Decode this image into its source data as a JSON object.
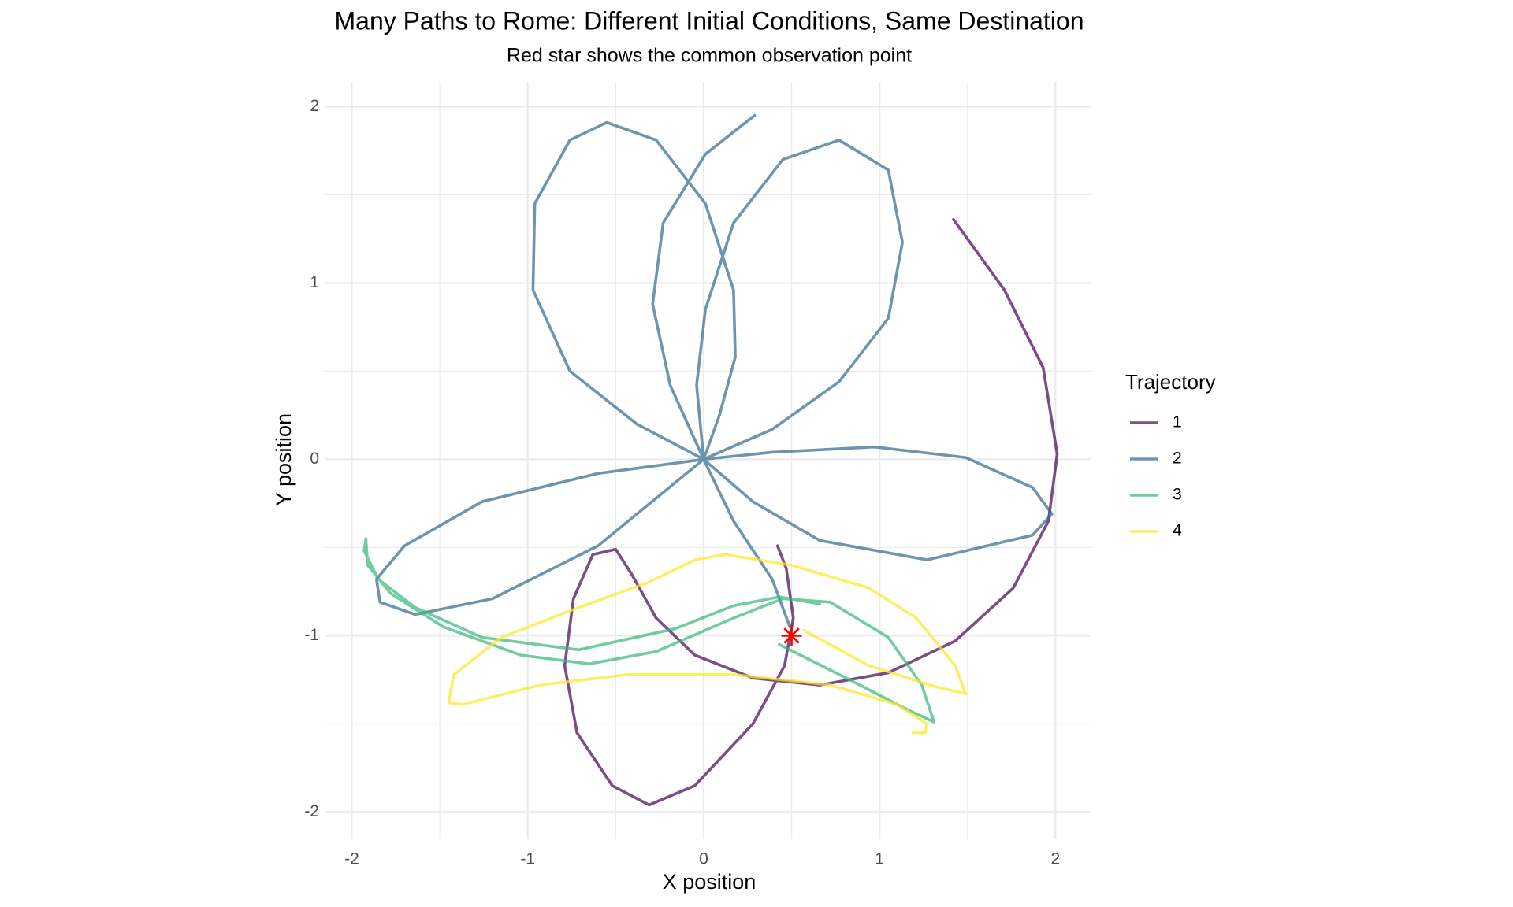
{
  "chart_data": {
    "type": "line",
    "title": "Many Paths to Rome: Different Initial Conditions, Same Destination",
    "subtitle": "Red star shows the common observation point",
    "x_label": "X position",
    "y_label": "Y position",
    "legend_title": "Trajectory",
    "legend_position": "right",
    "grid": true,
    "line_opacity": 0.7,
    "xlim": [
      -2.15,
      2.2
    ],
    "ylim": [
      -2.15,
      2.14
    ],
    "xticks": [
      -2,
      -1,
      0,
      1,
      2
    ],
    "yticks": [
      -2,
      -1,
      0,
      1,
      2
    ],
    "observation_point": {
      "x": 0.5,
      "y": -1,
      "color": "#ff0000"
    },
    "series": [
      {
        "name": "1",
        "color": "#440154",
        "x": [
          1.42,
          1.71,
          1.93,
          2.01,
          1.96,
          1.76,
          1.43,
          1.05,
          0.66,
          0.28,
          -0.05,
          -0.27,
          -0.41,
          -0.5,
          -0.63,
          -0.74,
          -0.79,
          -0.72,
          -0.52,
          -0.31,
          -0.05,
          0.28,
          0.46,
          0.51,
          0.47,
          0.42
        ],
        "values": [
          1.36,
          0.96,
          0.52,
          0.03,
          -0.35,
          -0.73,
          -1.03,
          -1.21,
          -1.28,
          -1.24,
          -1.11,
          -0.9,
          -0.65,
          -0.51,
          -0.54,
          -0.79,
          -1.17,
          -1.55,
          -1.85,
          -1.96,
          -1.85,
          -1.5,
          -1.17,
          -0.9,
          -0.62,
          -0.49
        ]
      },
      {
        "name": "2",
        "color": "#31688e",
        "x": [
          0.49,
          0.39,
          0.17,
          0,
          -0.6,
          -1.26,
          -1.7,
          -1.86,
          -1.84,
          -1.64,
          -1.2,
          -0.6,
          0,
          0.39,
          0.97,
          1.49,
          1.87,
          1.98,
          1.87,
          1.27,
          0.66,
          0.28,
          0,
          -0.04,
          0.01,
          0.17,
          0.45,
          0.77,
          1.05,
          1.13,
          1.05,
          0.77,
          0.39,
          0,
          0.09,
          0.18,
          0.17,
          0.01,
          -0.27,
          -0.55,
          -0.76,
          -0.96,
          -0.97,
          -0.76,
          -0.38,
          0,
          -0.19,
          -0.29,
          -0.23,
          0.01,
          0.29
        ],
        "values": [
          -0.95,
          -0.68,
          -0.35,
          0,
          -0.08,
          -0.24,
          -0.49,
          -0.68,
          -0.81,
          -0.88,
          -0.79,
          -0.49,
          0,
          0.04,
          0.07,
          0.01,
          -0.16,
          -0.31,
          -0.43,
          -0.57,
          -0.46,
          -0.24,
          0,
          0.42,
          0.85,
          1.34,
          1.7,
          1.81,
          1.64,
          1.23,
          0.8,
          0.44,
          0.17,
          0,
          0.25,
          0.58,
          0.96,
          1.45,
          1.81,
          1.91,
          1.81,
          1.45,
          0.96,
          0.5,
          0.2,
          0,
          0.42,
          0.88,
          1.34,
          1.73,
          1.95
        ]
      },
      {
        "name": "3",
        "color": "#35b779",
        "x": [
          0.66,
          0.43,
          0.17,
          -0.16,
          -0.71,
          -1.26,
          -1.64,
          -1.85,
          -1.93,
          -1.92,
          -1.91,
          -1.78,
          -1.48,
          -1.04,
          -0.65,
          -0.27,
          0.17,
          0.45,
          0.72,
          1.05,
          1.24,
          1.31,
          1.16,
          0.83,
          0.43
        ],
        "values": [
          -0.82,
          -0.78,
          -0.83,
          -0.96,
          -1.08,
          -1.01,
          -0.84,
          -0.68,
          -0.52,
          -0.45,
          -0.6,
          -0.76,
          -0.95,
          -1.11,
          -1.16,
          -1.09,
          -0.9,
          -0.79,
          -0.81,
          -1.01,
          -1.28,
          -1.49,
          -1.42,
          -1.25,
          -1.05
        ]
      },
      {
        "name": "4",
        "color": "#fde725",
        "x": [
          0.57,
          0.94,
          1.32,
          1.49,
          1.43,
          1.21,
          0.94,
          0.5,
          0.12,
          -0.05,
          -0.32,
          -0.71,
          -1.15,
          -1.42,
          -1.45,
          -1.37,
          -0.93,
          -0.43,
          0.17,
          0.72,
          1.1,
          1.27,
          1.26,
          1.19
        ],
        "values": [
          -0.97,
          -1.17,
          -1.29,
          -1.33,
          -1.17,
          -0.9,
          -0.73,
          -0.6,
          -0.54,
          -0.57,
          -0.7,
          -0.84,
          -1.01,
          -1.22,
          -1.38,
          -1.39,
          -1.28,
          -1.22,
          -1.22,
          -1.28,
          -1.39,
          -1.5,
          -1.55,
          -1.55
        ]
      }
    ]
  }
}
